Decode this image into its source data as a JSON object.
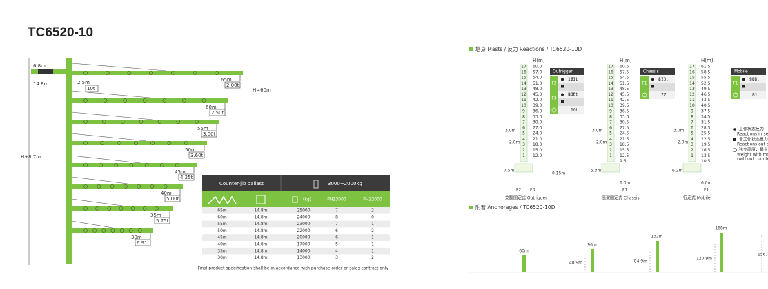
{
  "title": "TC6520-10",
  "jib": {
    "labels": [
      "6.8m",
      "14.8m",
      "2.5m",
      "10t",
      "H=60m",
      "H+8.7m"
    ],
    "rows": [
      {
        "length": "65m",
        "load": "2.00t"
      },
      {
        "length": "60m",
        "load": "2.50t"
      },
      {
        "length": "55m",
        "load": "3.00t"
      },
      {
        "length": "50m",
        "load": "3.60t"
      },
      {
        "length": "45m",
        "load": "4.25t"
      },
      {
        "length": "40m",
        "load": "5.00t"
      },
      {
        "length": "35m",
        "load": "5.75t"
      },
      {
        "length": "30m",
        "load": "6.91t"
      }
    ]
  },
  "table": {
    "header": [
      "Counter-jib ballast",
      "3000~2000kg"
    ],
    "columns": [
      "(kg)",
      "PHZ3000",
      "PHZ2000"
    ],
    "rows": [
      [
        "65m",
        "14.8m",
        25000,
        7,
        2
      ],
      [
        "60m",
        "14.8m",
        24000,
        8,
        0
      ],
      [
        "55m",
        "14.8m",
        23000,
        7,
        1
      ],
      [
        "50m",
        "14.8m",
        22000,
        6,
        2
      ],
      [
        "45m",
        "14.8m",
        20000,
        6,
        1
      ],
      [
        "40m",
        "14.8m",
        17000,
        5,
        1
      ],
      [
        "35m",
        "14.8m",
        14000,
        4,
        1
      ],
      [
        "30m",
        "14.8m",
        13000,
        3,
        2
      ]
    ]
  },
  "footnote": "Final product specification shall be in accordance with purchase order or sales contract only",
  "masts": {
    "title": "塔身 Masts / 反力 Reactions / TC6520-10D",
    "h_label": "H(m)",
    "levels": [
      "17",
      "16",
      "15",
      "14",
      "13",
      "12",
      "11",
      "10",
      "9",
      "8",
      "7",
      "6",
      "5",
      "4",
      "3",
      "2",
      "1"
    ],
    "diagrams": [
      {
        "heights": [
          "60.0",
          "57.0",
          "54.0",
          "51.0",
          "48.0",
          "45.0",
          "42.0",
          "39.0",
          "36.0",
          "33.0",
          "30.0",
          "27.0",
          "24.0",
          "21.0",
          "18.0",
          "15.0",
          "12.0"
        ],
        "panel": {
          "name": "Outrigger",
          "groups": [
            {
              "force": "F2",
              "items": [
                "137t",
                "173t"
              ]
            },
            {
              "force": "F3",
              "items": [
                "88t",
                "130t"
              ]
            }
          ],
          "weight": "66t"
        },
        "dims": [
          "3.0m",
          "2.0m",
          "7.5m",
          "0.15m"
        ],
        "forces": [
          "F2",
          "F3"
        ],
        "caption": "支腿固定式 Outrigger"
      },
      {
        "heights": [
          "60.5",
          "57.5",
          "54.5",
          "51.5",
          "48.5",
          "45.5",
          "42.5",
          "39.5",
          "36.5",
          "33.6",
          "30.5",
          "27.5",
          "24.5",
          "21.5",
          "18.5",
          "15.5",
          "12.5",
          "9.5"
        ],
        "panel": {
          "name": "Chassis",
          "groups": [
            {
              "force": "F1",
              "items": [
                "87t",
                "110t"
              ]
            }
          ],
          "weight": "77t"
        },
        "dims": [
          "3.0m",
          "2.0m",
          "5.3m",
          "6.0m"
        ],
        "forces": [
          "F1"
        ],
        "caption": "底架固定式 Chassis"
      },
      {
        "heights": [
          "61.5",
          "58.5",
          "55.5",
          "52.5",
          "49.5",
          "46.5",
          "43.5",
          "40.5",
          "37.5",
          "34.5",
          "31.5",
          "28.5",
          "25.5",
          "22.5",
          "19.5",
          "16.5",
          "13.5",
          "10.5"
        ],
        "panel": {
          "name": "Mobile",
          "groups": [
            {
              "force": "F1",
              "items": [
                "90t",
                "113t"
              ]
            }
          ],
          "weight": "81t"
        },
        "dims": [
          "3.0m",
          "2.0m",
          "6.2m",
          "6.0m"
        ],
        "forces": [
          "F1"
        ],
        "caption": "行走式 Mobile"
      }
    ],
    "legend": [
      {
        "zh": "工作状态反力",
        "en": "Reactions in serv"
      },
      {
        "zh": "非工作状态反力",
        "en": "Reactions out of"
      },
      {
        "zh": "独立高度，最大",
        "en": "Weight  with max",
        "extra": "(without counter-"
      }
    ]
  },
  "anchorages": {
    "title": "附着  Anchorages / TC6520-10D",
    "heights": [
      "60m",
      "96m",
      "132m",
      "168m"
    ],
    "gaps": [
      "48.9m",
      "84.9m",
      "120.9m",
      "156."
    ]
  }
}
